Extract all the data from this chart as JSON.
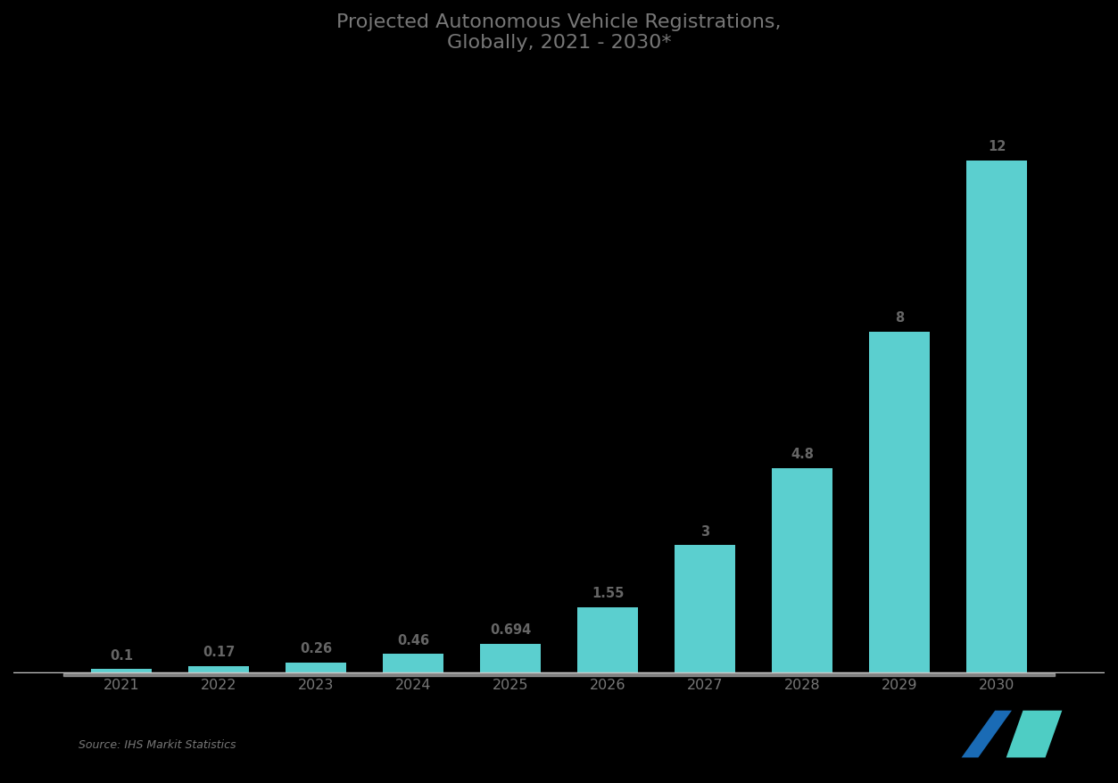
{
  "title_line1": "Projected Autonomous Vehicle Registrations,",
  "title_line2": "Globally, 2021 - 2030*",
  "years": [
    "2021",
    "2022",
    "2023",
    "2024",
    "2025",
    "2026",
    "2027",
    "2028",
    "2029",
    "2030"
  ],
  "values": [
    0.1,
    0.17,
    0.26,
    0.46,
    0.694,
    1.55,
    3.0,
    4.8,
    8.0,
    12.0
  ],
  "bar_labels": [
    "0.1",
    "0.17",
    "0.26",
    "0.46",
    "0.694",
    "1.55",
    "3",
    "4.8",
    "8",
    "12"
  ],
  "bar_color": "#5bcfcf",
  "background_color": "#000000",
  "plot_bg_color": "#000000",
  "axis_strip_color": "#c8c8c8",
  "text_color": "#777777",
  "title_color": "#777777",
  "label_color": "#666666",
  "source_text": "Source: IHS Markit Statistics",
  "ylim": [
    0,
    14
  ],
  "logo_left_color": "#1a6bb5",
  "logo_right_color": "#4ecdc4"
}
